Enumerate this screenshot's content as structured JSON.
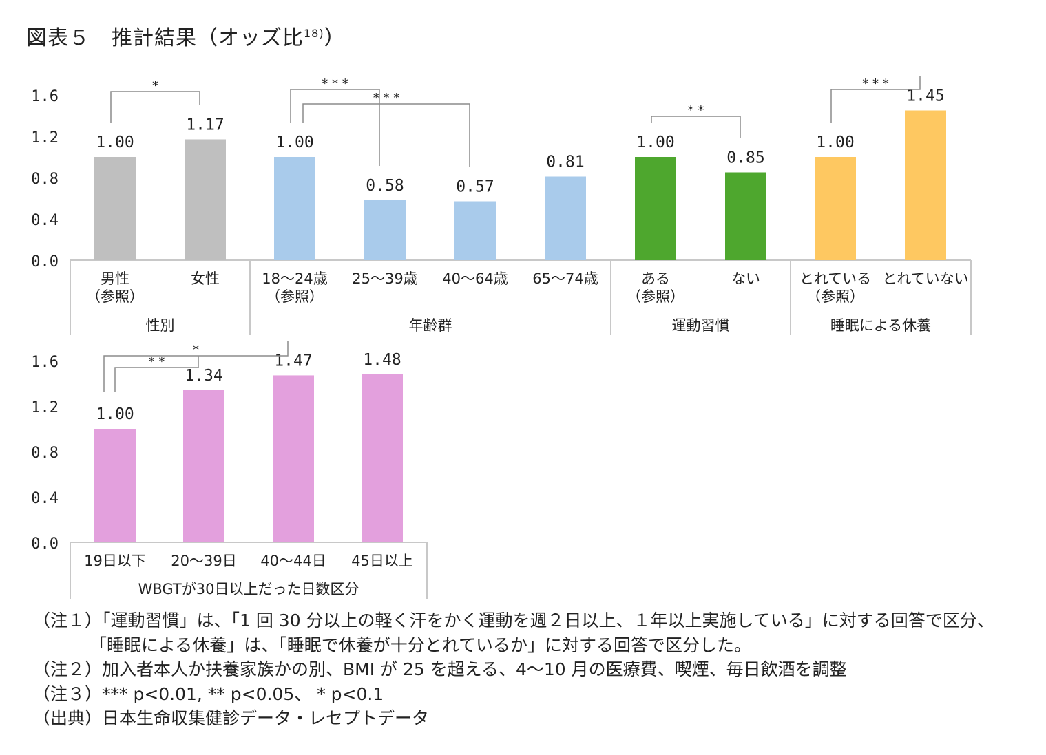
{
  "title": {
    "main": "図表５　推計結果（オッズ比",
    "sup": "18)",
    "close": "）"
  },
  "chart_data": [
    {
      "type": "bar",
      "ylim": [
        0,
        1.6
      ],
      "yticks": [
        "1.6",
        "1.2",
        "0.8",
        "0.4",
        "0.0"
      ],
      "grid": false,
      "groups": [
        {
          "name": "性別",
          "color": "#bfbfbf",
          "bars": [
            {
              "label": [
                "男性",
                "（参照）"
              ],
              "value": 1.0,
              "value_label": "1.00"
            },
            {
              "label": [
                "女性"
              ],
              "value": 1.17,
              "value_label": "1.17"
            }
          ],
          "significance": [
            {
              "from": 0,
              "to": 1,
              "stars": "*"
            }
          ]
        },
        {
          "name": "年齢群",
          "color": "#a9cbeb",
          "bars": [
            {
              "label": [
                "18～24歳",
                "（参照）"
              ],
              "value": 1.0,
              "value_label": "1.00"
            },
            {
              "label": [
                "25～39歳"
              ],
              "value": 0.58,
              "value_label": "0.58"
            },
            {
              "label": [
                "40～64歳"
              ],
              "value": 0.57,
              "value_label": "0.57"
            },
            {
              "label": [
                "65～74歳"
              ],
              "value": 0.81,
              "value_label": "0.81"
            }
          ],
          "significance": [
            {
              "from": 0,
              "to": 1,
              "stars": "***"
            },
            {
              "from": 0,
              "to": 2,
              "stars": "***"
            }
          ]
        },
        {
          "name": "運動習慣",
          "color": "#4ea72e",
          "bars": [
            {
              "label": [
                "ある",
                "（参照）"
              ],
              "value": 1.0,
              "value_label": "1.00"
            },
            {
              "label": [
                "ない"
              ],
              "value": 0.85,
              "value_label": "0.85"
            }
          ],
          "significance": [
            {
              "from": 0,
              "to": 1,
              "stars": "**"
            }
          ]
        },
        {
          "name": "睡眠による休養",
          "color": "#fec861",
          "bars": [
            {
              "label": [
                "とれている",
                "（参照）"
              ],
              "value": 1.0,
              "value_label": "1.00"
            },
            {
              "label": [
                "とれていない"
              ],
              "value": 1.45,
              "value_label": "1.45"
            }
          ],
          "significance": [
            {
              "from": 0,
              "to": 1,
              "stars": "***"
            }
          ]
        }
      ]
    },
    {
      "type": "bar",
      "ylim": [
        0,
        1.6
      ],
      "yticks": [
        "1.6",
        "1.2",
        "0.8",
        "0.4",
        "0.0"
      ],
      "grid": false,
      "groups": [
        {
          "name": "WBGTが30日以上だった日数区分",
          "color": "#e3a0dd",
          "bars": [
            {
              "label": [
                "19日以下"
              ],
              "value": 1.0,
              "value_label": "1.00"
            },
            {
              "label": [
                "20～39日"
              ],
              "value": 1.34,
              "value_label": "1.34"
            },
            {
              "label": [
                "40～44日"
              ],
              "value": 1.47,
              "value_label": "1.47"
            },
            {
              "label": [
                "45日以上"
              ],
              "value": 1.48,
              "value_label": "1.48"
            }
          ],
          "significance": [
            {
              "from": 0,
              "to": 1,
              "stars": "**"
            },
            {
              "from": 0,
              "to": 2,
              "stars": "*"
            }
          ]
        }
      ]
    }
  ],
  "notes": [
    "（注１）「運動習慣」は、「1 回 30 分以上の軽く汗をかく運動を週２日以上、１年以上実施している」に対する回答で区分、",
    "「睡眠による休養」は、「睡眠で休養が十分とれているか」に対する回答で区分した。",
    "（注２）加入者本人か扶養家族かの別、BMI が 25 を超える、4～10 月の医療費、喫煙、毎日飲酒を調整",
    "（注３）*** p<0.01, ** p<0.05、 * p<0.1",
    "（出典）日本生命収集健診データ・レセプトデータ"
  ]
}
